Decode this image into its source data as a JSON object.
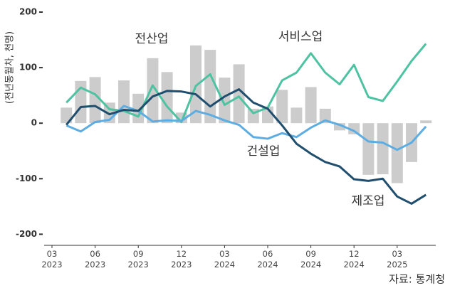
{
  "chart_data": {
    "type": "bar_line",
    "y_label": "(전년동월차, 천명)",
    "source": "자료: 통계청",
    "categories": [
      "03 2023",
      null,
      null,
      "06 2023",
      null,
      null,
      "09 2023",
      null,
      null,
      "12 2023",
      null,
      null,
      "03 2024",
      null,
      null,
      "06 2024",
      null,
      null,
      "09 2024",
      null,
      null,
      "12 2024",
      null,
      null,
      "03 2025",
      null,
      null
    ],
    "ylim": [
      -220,
      210
    ],
    "yticks": [
      -200,
      -100,
      0,
      100,
      200
    ],
    "series": [
      {
        "name": "전산업",
        "kind": "bar",
        "color": "#cccccc",
        "values": [
          null,
          28,
          76,
          83,
          37,
          77,
          53,
          117,
          92,
          19,
          140,
          132,
          82,
          106,
          26,
          30,
          60,
          28,
          65,
          26,
          -13,
          -20,
          -93,
          -92,
          -108,
          -70,
          5
        ]
      },
      {
        "name": "서비스업",
        "kind": "line",
        "color": "#4fc3a1",
        "values": [
          null,
          37,
          64,
          52,
          25,
          22,
          12,
          68,
          30,
          2,
          67,
          88,
          33,
          48,
          18,
          28,
          77,
          91,
          126,
          91,
          70,
          105,
          47,
          40,
          75,
          112,
          143
        ]
      },
      {
        "name": "건설업",
        "kind": "line",
        "color": "#5dade2",
        "values": [
          null,
          -4,
          -15,
          2,
          6,
          31,
          22,
          3,
          5,
          4,
          22,
          15,
          5,
          -3,
          -25,
          -28,
          -18,
          -25,
          -8,
          5,
          -3,
          -14,
          -33,
          -35,
          -48,
          -35,
          -6
        ]
      },
      {
        "name": "제조업",
        "kind": "line",
        "color": "#1f4e6e",
        "values": [
          null,
          -3,
          29,
          31,
          16,
          24,
          22,
          48,
          58,
          57,
          52,
          30,
          48,
          61,
          37,
          26,
          -4,
          -37,
          -55,
          -70,
          -78,
          -101,
          -104,
          -100,
          -132,
          -145,
          -129
        ]
      }
    ]
  }
}
